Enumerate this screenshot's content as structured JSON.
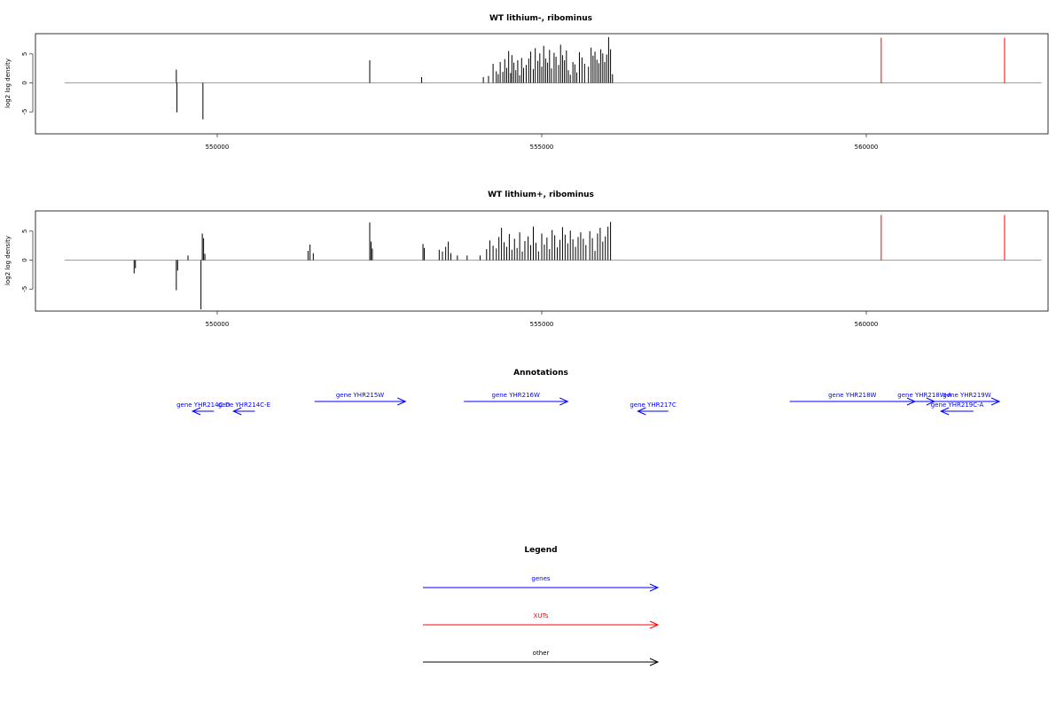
{
  "colors": {
    "genes": "#0000ff",
    "xuts": "#ff0000",
    "other": "#000000",
    "baseline": "#7f7f7f"
  },
  "chart_data": [
    {
      "type": "bar",
      "title": "WT lithium-, ribominus",
      "ylabel": "log2 log density",
      "xlim": [
        547200,
        562800
      ],
      "ylim": [
        -8.8,
        8.5
      ],
      "x_ticks": [
        550000,
        555000,
        560000
      ],
      "x_tick_labels": [
        "550000",
        "555000",
        "560000"
      ],
      "y_ticks": [
        -5,
        0,
        5
      ],
      "y_tick_labels": [
        "-5",
        "0",
        "5"
      ],
      "baseline_range": [
        547650,
        562700
      ],
      "series": [
        {
          "color": "#000000",
          "x": [
            549370,
            549380,
            549780,
            552350,
            553150,
            554100,
            554180,
            554250,
            554300,
            554330,
            554360,
            554400,
            554430,
            554460,
            554490,
            554520,
            554540,
            554570,
            554600,
            554630,
            554660,
            554690,
            554720,
            554760,
            554800,
            554830,
            554870,
            554900,
            554940,
            554970,
            555000,
            555030,
            555060,
            555090,
            555120,
            555150,
            555190,
            555220,
            555260,
            555290,
            555320,
            555350,
            555380,
            555410,
            555440,
            555480,
            555510,
            555540,
            555580,
            555620,
            555660,
            555720,
            555760,
            555790,
            555820,
            555850,
            555880,
            555910,
            555940,
            555970,
            556000,
            556030,
            556060,
            556090
          ],
          "values": [
            2.3,
            -5.1,
            -6.3,
            3.9,
            1.0,
            1.0,
            1.2,
            3.3,
            2.0,
            1.5,
            3.6,
            1.9,
            4.1,
            2.6,
            5.5,
            1.7,
            4.8,
            3.5,
            2.2,
            3.9,
            1.3,
            4.3,
            2.6,
            3.1,
            4.2,
            5.4,
            2.4,
            6.0,
            3.8,
            5.1,
            2.8,
            6.4,
            4.2,
            3.5,
            5.7,
            2.5,
            5.2,
            4.5,
            3.1,
            6.6,
            4.8,
            3.9,
            5.6,
            2.2,
            1.4,
            3.6,
            3.2,
            1.8,
            5.3,
            4.4,
            3.3,
            2.8,
            6.1,
            4.7,
            5.4,
            4.0,
            3.4,
            5.8,
            5.1,
            3.6,
            4.9,
            7.9,
            5.8,
            1.5
          ]
        },
        {
          "color": "#ff0000",
          "x": [
            560230,
            562130
          ],
          "values": [
            7.8,
            7.8
          ]
        }
      ]
    },
    {
      "type": "bar",
      "title": "WT lithium+, ribominus",
      "ylabel": "log2 log density",
      "xlim": [
        547200,
        562800
      ],
      "ylim": [
        -8.8,
        8.5
      ],
      "x_ticks": [
        550000,
        555000,
        560000
      ],
      "x_tick_labels": [
        "550000",
        "555000",
        "560000"
      ],
      "y_ticks": [
        -5,
        0,
        5
      ],
      "y_tick_labels": [
        "-5",
        "0",
        "5"
      ],
      "baseline_range": [
        547650,
        562700
      ],
      "series": [
        {
          "color": "#000000",
          "x": [
            548720,
            548740,
            549370,
            549390,
            549550,
            549750,
            549770,
            549790,
            549810,
            551400,
            551430,
            551480,
            552350,
            552370,
            552390,
            553170,
            553190,
            553420,
            553470,
            553520,
            553560,
            553600,
            553700,
            553850,
            554050,
            554150,
            554200,
            554250,
            554300,
            554340,
            554380,
            554420,
            554460,
            554500,
            554540,
            554580,
            554620,
            554660,
            554700,
            554740,
            554790,
            554830,
            554870,
            554910,
            554950,
            555000,
            555040,
            555080,
            555120,
            555160,
            555200,
            555240,
            555280,
            555320,
            555360,
            555400,
            555440,
            555480,
            555520,
            555560,
            555600,
            555640,
            555680,
            555740,
            555780,
            555820,
            555860,
            555900,
            555940,
            555980,
            556020,
            556060
          ],
          "values": [
            -2.3,
            -1.4,
            -5.2,
            -1.8,
            0.8,
            -8.5,
            4.6,
            3.8,
            1.1,
            1.6,
            2.7,
            1.2,
            6.5,
            3.2,
            2.0,
            2.8,
            2.1,
            1.8,
            1.5,
            2.3,
            3.2,
            1.2,
            0.8,
            0.8,
            0.8,
            1.9,
            3.4,
            2.5,
            2.0,
            4.0,
            5.6,
            3.1,
            2.3,
            4.5,
            1.8,
            3.7,
            2.1,
            4.8,
            1.5,
            3.3,
            4.1,
            2.6,
            5.8,
            3.0,
            1.5,
            4.6,
            2.7,
            3.9,
            1.9,
            5.2,
            4.3,
            2.2,
            3.5,
            5.7,
            4.4,
            2.9,
            5.1,
            3.6,
            2.3,
            4.0,
            4.8,
            3.7,
            2.6,
            5.0,
            3.8,
            1.6,
            4.6,
            5.6,
            3.2,
            4.1,
            5.8,
            6.6
          ]
        },
        {
          "color": "#ff0000",
          "x": [
            560230,
            562130
          ],
          "values": [
            7.8,
            7.8
          ]
        }
      ]
    }
  ],
  "annotations": {
    "title": "Annotations",
    "features": [
      {
        "label": "gene YHR214C-D",
        "start": 549950,
        "end": 549620,
        "row": 1,
        "category": "genes"
      },
      {
        "label": "gene YHR214C-E",
        "start": 550580,
        "end": 550250,
        "row": 1,
        "category": "genes"
      },
      {
        "label": "gene YHR215W",
        "start": 551500,
        "end": 552900,
        "row": 0,
        "category": "genes"
      },
      {
        "label": "gene YHR216W",
        "start": 553800,
        "end": 555400,
        "row": 0,
        "category": "genes"
      },
      {
        "label": "gene YHR217C",
        "start": 556950,
        "end": 556480,
        "row": 1,
        "category": "genes"
      },
      {
        "label": "gene YHR218W",
        "start": 558820,
        "end": 560750,
        "row": 0,
        "category": "genes"
      },
      {
        "label": "gene YHR218W-A",
        "start": 560750,
        "end": 561050,
        "row": 0,
        "category": "genes"
      },
      {
        "label": "gene YHR219W",
        "start": 561050,
        "end": 562050,
        "row": 0,
        "category": "genes"
      },
      {
        "label": "gene YHR219C-A",
        "start": 561650,
        "end": 561150,
        "row": 1,
        "category": "genes"
      }
    ]
  },
  "legend": {
    "title": "Legend",
    "items": [
      {
        "label": "genes",
        "category": "genes"
      },
      {
        "label": "XUTs",
        "category": "xuts"
      },
      {
        "label": "other",
        "category": "other"
      }
    ]
  }
}
